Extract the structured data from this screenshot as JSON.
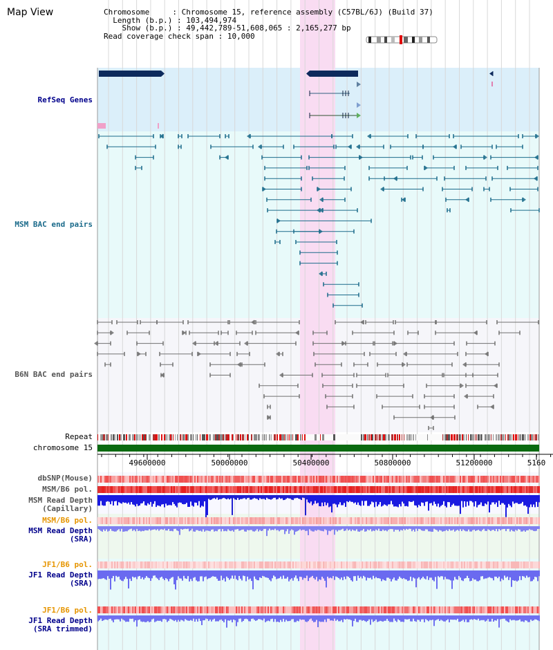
{
  "page_title": "Map View",
  "info": {
    "chromosome_key": "Chromosome",
    "chromosome_val": "Chromosome 15, reference assembly (C57BL/6J) (Build 37)",
    "length_key": "Length (b.p.)",
    "length_val": "103,494,974",
    "show_key": "Show (b.p.)",
    "show_val": "49,442,789-51,608,065 : 2,165,277 bp",
    "span_key": "Read coverage check span",
    "span_val": "10,000"
  },
  "tracks": {
    "refseq": "RefSeq Genes",
    "msm_bac": "MSM BAC end pairs",
    "b6n_bac": "B6N BAC end pairs",
    "repeat": "Repeat",
    "chromosome": "chromosome 15",
    "dbsnp": "dbSNP(Mouse)",
    "msm_pol": "MSM/B6 pol.",
    "msm_depth_cap_1": "MSM Read Depth",
    "msm_depth_cap_2": "(Capillary)",
    "msm_pol_sra": "MSM/B6 pol.",
    "msm_depth_sra_1": "MSM Read Depth",
    "msm_depth_sra_2": "(SRA)",
    "jf1_pol": "JF1/B6 pol.",
    "jf1_depth_1": "JF1 Read Depth",
    "jf1_depth_2": "(SRA)",
    "jf1_pol_trim": "JF1/B6 pol.",
    "jf1_trim_1": "JF1 Read Depth",
    "jf1_trim_2": "(SRA trimmed)"
  },
  "axis": {
    "ticks": [
      "49600000",
      "50000000",
      "50400000",
      "50800000",
      "51200000",
      "5160"
    ]
  },
  "colors": {
    "refseq_bg": "#dbeffa",
    "msm_bg": "#e8fafa",
    "highlight": "#f9dcf2",
    "gene": "#0d2a5c",
    "msm_feature": "#1a6a8a",
    "b6n_feature": "#707070",
    "chromosome_bar": "#0a6a10",
    "depth_blue": "#1a1ae0",
    "depth_light": "#8080f0",
    "label_blue": "#00008b",
    "label_orange": "#e69500",
    "label_teal": "#1a6a8a"
  }
}
